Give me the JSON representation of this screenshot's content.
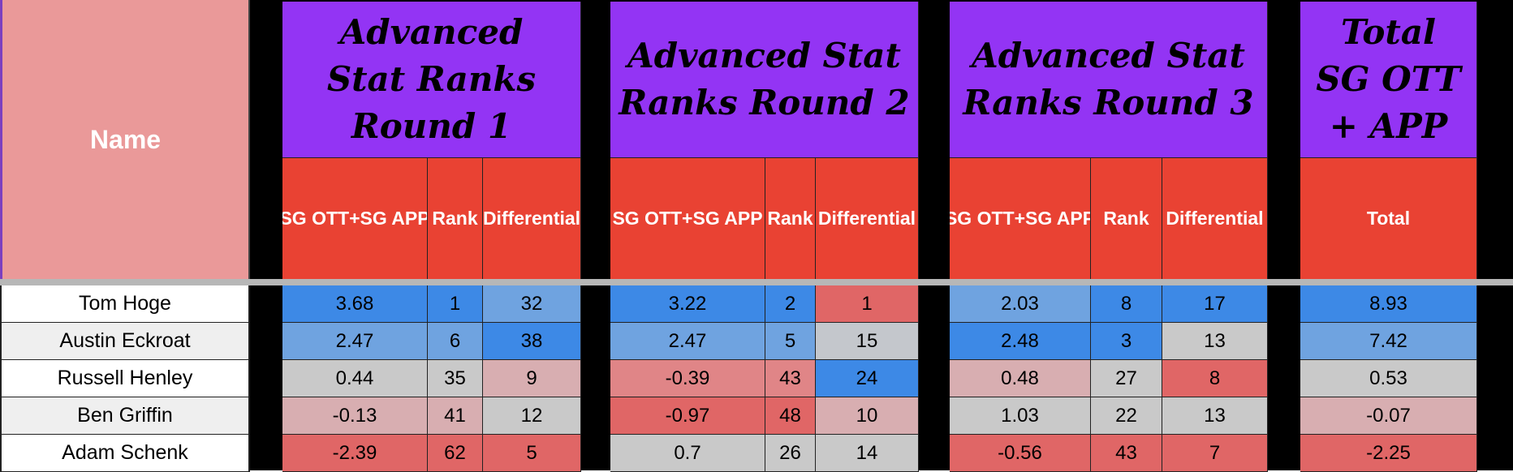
{
  "header": {
    "name_label": "Name",
    "groups": [
      {
        "title": "Advanced Stat Ranks Round 1"
      },
      {
        "title": "Advanced Stat Ranks Round 2"
      },
      {
        "title": "Advanced Stat Ranks Round 3"
      },
      {
        "title": "Total SG OTT + APP"
      }
    ],
    "subheaders": {
      "sg": "SG OTT+SG APP",
      "rank": "Rank",
      "diff": "Differential",
      "total": "Total"
    }
  },
  "rows": [
    {
      "name": "Tom Hoge",
      "r1": {
        "sg": "3.68",
        "rank": "1",
        "diff": "32"
      },
      "r2": {
        "sg": "3.22",
        "rank": "2",
        "diff": "1"
      },
      "r3": {
        "sg": "2.03",
        "rank": "8",
        "diff": "17"
      },
      "total": "8.93",
      "colors": [
        "c-blue",
        "c-blue",
        "c-lblue",
        "c-blue",
        "c-blue",
        "c-red",
        "c-lblue",
        "c-blue",
        "c-blue",
        "c-blue"
      ]
    },
    {
      "name": "Austin Eckroat",
      "r1": {
        "sg": "2.47",
        "rank": "6",
        "diff": "38"
      },
      "r2": {
        "sg": "2.47",
        "rank": "5",
        "diff": "15"
      },
      "r3": {
        "sg": "2.48",
        "rank": "3",
        "diff": "13"
      },
      "total": "7.42",
      "colors": [
        "c-lblue",
        "c-lblue",
        "c-blue",
        "c-lblue",
        "c-lblue",
        "c-lgray",
        "c-blue",
        "c-blue",
        "c-gray",
        "c-lblue"
      ]
    },
    {
      "name": "Russell Henley",
      "r1": {
        "sg": "0.44",
        "rank": "35",
        "diff": "9"
      },
      "r2": {
        "sg": "-0.39",
        "rank": "43",
        "diff": "24"
      },
      "r3": {
        "sg": "0.48",
        "rank": "27",
        "diff": "8"
      },
      "total": "0.53",
      "colors": [
        "c-gray",
        "c-gray",
        "c-pink",
        "c-lred",
        "c-lred",
        "c-blue",
        "c-pink",
        "c-gray",
        "c-red",
        "c-gray"
      ]
    },
    {
      "name": "Ben Griffin",
      "r1": {
        "sg": "-0.13",
        "rank": "41",
        "diff": "12"
      },
      "r2": {
        "sg": "-0.97",
        "rank": "48",
        "diff": "10"
      },
      "r3": {
        "sg": "1.03",
        "rank": "22",
        "diff": "13"
      },
      "total": "-0.07",
      "colors": [
        "c-pink",
        "c-pink",
        "c-gray",
        "c-red",
        "c-red",
        "c-pink",
        "c-gray",
        "c-gray",
        "c-gray",
        "c-pink"
      ]
    },
    {
      "name": "Adam Schenk",
      "r1": {
        "sg": "-2.39",
        "rank": "62",
        "diff": "5"
      },
      "r2": {
        "sg": "0.7",
        "rank": "26",
        "diff": "14"
      },
      "r3": {
        "sg": "-0.56",
        "rank": "43",
        "diff": "7"
      },
      "total": "-2.25",
      "colors": [
        "c-red",
        "c-red",
        "c-red",
        "c-gray",
        "c-gray",
        "c-gray",
        "c-red",
        "c-red",
        "c-red",
        "c-red"
      ]
    }
  ]
}
